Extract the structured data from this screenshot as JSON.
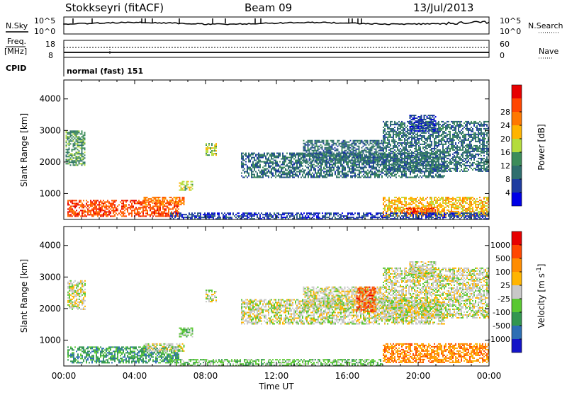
{
  "header": {
    "station": "Stokkseyri (fitACF)",
    "beam": "Beam 09",
    "date": "13/Jul/2013"
  },
  "top_panels": {
    "nsky_label": "N.Sky",
    "nsearch_label": "N.Search",
    "noise_ticks": [
      "10^5",
      "10^0"
    ],
    "freq_label_1": "Freq.",
    "freq_label_2": "[MHz]",
    "nave_label": "Nave",
    "freq_ticks": [
      "18",
      "8"
    ],
    "nave_ticks": [
      "60",
      "0"
    ],
    "cpid_label": "CPID",
    "cpid_value": "normal (fast) 151"
  },
  "chart_data": [
    {
      "type": "heatmap",
      "name": "power",
      "ylabel": "Slant Range [km]",
      "xlabel": "Time UT",
      "yticks": [
        1000,
        2000,
        3000,
        4000
      ],
      "ylim": [
        180,
        4600
      ],
      "xticks": [
        "00:00",
        "04:00",
        "08:00",
        "12:00",
        "16:00",
        "20:00",
        "00:00"
      ],
      "xlim_hours": [
        0,
        24
      ],
      "colorbar": {
        "label": "Power [dB]",
        "ticks": [
          "4",
          "8",
          "12",
          "16",
          "20",
          "24",
          "28"
        ],
        "colors": [
          "#0000e6",
          "#1e3ca0",
          "#2f6e6e",
          "#3c8c5a",
          "#b4dc3c",
          "#ffb400",
          "#ff7800",
          "#ff4600",
          "#e60000"
        ]
      },
      "regions": [
        {
          "t0": 0.2,
          "t1": 6.5,
          "r0": 300,
          "r1": 800,
          "level": 7
        },
        {
          "t0": 0.1,
          "t1": 1.2,
          "r0": 1900,
          "r1": 3000,
          "level": 3
        },
        {
          "t0": 4.5,
          "t1": 6.8,
          "r0": 650,
          "r1": 900,
          "level": 6
        },
        {
          "t0": 6.5,
          "t1": 7.3,
          "r0": 1100,
          "r1": 1400,
          "level": 4
        },
        {
          "t0": 8.0,
          "t1": 8.6,
          "r0": 2200,
          "r1": 2600,
          "level": 4
        },
        {
          "t0": 10.0,
          "t1": 21.5,
          "r0": 1500,
          "r1": 2300,
          "level": 2
        },
        {
          "t0": 13.5,
          "t1": 18.0,
          "r0": 2000,
          "r1": 2700,
          "level": 2
        },
        {
          "t0": 18.0,
          "t1": 24.0,
          "r0": 1700,
          "r1": 3300,
          "level": 2
        },
        {
          "t0": 19.5,
          "t1": 21.0,
          "r0": 3000,
          "r1": 3500,
          "level": 1
        },
        {
          "t0": 18.0,
          "t1": 24.0,
          "r0": 300,
          "r1": 900,
          "level": 5
        },
        {
          "t0": 19.0,
          "t1": 21.0,
          "r0": 350,
          "r1": 550,
          "level": 7
        },
        {
          "t0": 6.0,
          "t1": 24.0,
          "r0": 200,
          "r1": 400,
          "level": 1
        }
      ]
    },
    {
      "type": "heatmap",
      "name": "velocity",
      "ylabel": "Slant Range [km]",
      "xlabel": "Time UT",
      "yticks": [
        1000,
        2000,
        3000,
        4000
      ],
      "ylim": [
        180,
        4600
      ],
      "xticks": [
        "00:00",
        "04:00",
        "08:00",
        "12:00",
        "16:00",
        "20:00",
        "00:00"
      ],
      "xlim_hours": [
        0,
        24
      ],
      "colorbar": {
        "label": "Velocity",
        "label_units": "[m s",
        "label_exp": "-1",
        "label_close": "]",
        "ticks": [
          "1000",
          "500",
          "100",
          "25",
          "-25",
          "-100",
          "-500",
          "-1000"
        ],
        "colors": [
          "#1414c8",
          "#2d6eb4",
          "#329650",
          "#5ac832",
          "#c8c8c8",
          "#ffb400",
          "#ff8c00",
          "#ff4600",
          "#e60000"
        ]
      },
      "regions": [
        {
          "t0": 0.2,
          "t1": 6.5,
          "r0": 300,
          "r1": 800,
          "level": 2
        },
        {
          "t0": 0.2,
          "t1": 1.2,
          "r0": 2000,
          "r1": 2900,
          "level": 4
        },
        {
          "t0": 4.5,
          "t1": 6.8,
          "r0": 650,
          "r1": 900,
          "level": 4
        },
        {
          "t0": 6.5,
          "t1": 7.3,
          "r0": 1100,
          "r1": 1400,
          "level": 3
        },
        {
          "t0": 8.0,
          "t1": 8.6,
          "r0": 2200,
          "r1": 2600,
          "level": 4
        },
        {
          "t0": 10.0,
          "t1": 21.5,
          "r0": 1500,
          "r1": 2300,
          "level": 4
        },
        {
          "t0": 13.5,
          "t1": 18.0,
          "r0": 2000,
          "r1": 2700,
          "level": 4
        },
        {
          "t0": 16.5,
          "t1": 17.6,
          "r0": 1900,
          "r1": 2700,
          "level": 7
        },
        {
          "t0": 18.0,
          "t1": 24.0,
          "r0": 1700,
          "r1": 3300,
          "level": 4
        },
        {
          "t0": 19.5,
          "t1": 21.0,
          "r0": 3000,
          "r1": 3500,
          "level": 4
        },
        {
          "t0": 18.0,
          "t1": 24.0,
          "r0": 300,
          "r1": 900,
          "level": 6
        },
        {
          "t0": 6.0,
          "t1": 18.0,
          "r0": 200,
          "r1": 400,
          "level": 3
        }
      ]
    }
  ]
}
